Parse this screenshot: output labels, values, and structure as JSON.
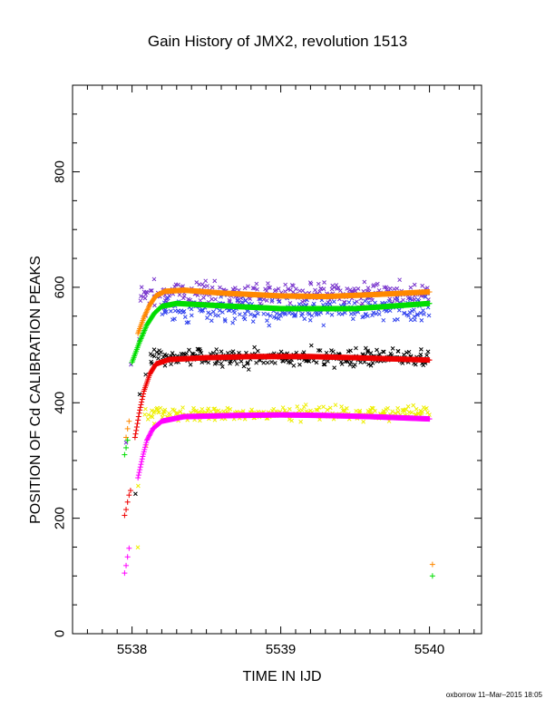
{
  "title": "Gain History of JMX2, revolution 1513",
  "footer": "oxborrow 11–Mar–2015 18:05",
  "chart_data": {
    "type": "scatter",
    "title": "Gain History of JMX2, revolution 1513",
    "xlabel": "TIME IN IJD",
    "ylabel": "POSITION OF Cd CALIBRATION PEAKS",
    "xlim": [
      5537.6,
      5540.35
    ],
    "ylim": [
      0,
      950
    ],
    "xticks": [
      5538,
      5539,
      5540
    ],
    "yticks": [
      0,
      200,
      400,
      600,
      800
    ],
    "grid": false,
    "colors": {
      "purple_raw": "#7733cc",
      "blue_raw": "#3344ee",
      "orange_fit": "#ff8800",
      "green_fit": "#00dd00",
      "black_raw": "#000000",
      "red_fit": "#ee0000",
      "yellow_raw": "#eeee00",
      "magenta_fit": "#ff00ff"
    },
    "series": [
      {
        "style": "x",
        "color_key": "purple_raw",
        "level": 590,
        "spread": 18,
        "x_start": 5538.05,
        "ramp": [
          [
            5537.96,
            330
          ],
          [
            5538.0,
            470
          ],
          [
            5538.05,
            510
          ],
          [
            5538.1,
            545
          ],
          [
            5538.15,
            570
          ],
          [
            5538.2,
            585
          ]
        ]
      },
      {
        "style": "x",
        "color_key": "blue_raw",
        "level": 562,
        "spread": 20,
        "x_start": 5538.2,
        "ramp": []
      },
      {
        "style": "x",
        "color_key": "black_raw",
        "level": 478,
        "spread": 14,
        "x_start": 5538.12,
        "ramp": [
          [
            5538.02,
            245
          ],
          [
            5538.06,
            420
          ],
          [
            5538.1,
            455
          ]
        ]
      },
      {
        "style": "x",
        "color_key": "yellow_raw",
        "level": 382,
        "spread": 11,
        "x_start": 5538.08,
        "ramp": [
          [
            5538.03,
            148
          ],
          [
            5538.05,
            260
          ],
          [
            5538.1,
            330
          ],
          [
            5538.15,
            365
          ]
        ]
      },
      {
        "style": "line",
        "color_key": "orange_fit",
        "points": [
          [
            5538.04,
            520
          ],
          [
            5538.08,
            548
          ],
          [
            5538.12,
            570
          ],
          [
            5538.16,
            585
          ],
          [
            5538.22,
            593
          ],
          [
            5538.35,
            595
          ],
          [
            5538.6,
            590
          ],
          [
            5539.0,
            585
          ],
          [
            5539.3,
            584
          ],
          [
            5539.6,
            587
          ],
          [
            5540.0,
            592
          ]
        ],
        "plus_points": [
          [
            5537.96,
            340
          ],
          [
            5537.97,
            355
          ],
          [
            5537.98,
            368
          ],
          [
            5540.02,
            120
          ]
        ]
      },
      {
        "style": "line",
        "color_key": "green_fit",
        "points": [
          [
            5538.0,
            470
          ],
          [
            5538.05,
            505
          ],
          [
            5538.1,
            535
          ],
          [
            5538.15,
            555
          ],
          [
            5538.2,
            567
          ],
          [
            5538.3,
            572
          ],
          [
            5538.6,
            568
          ],
          [
            5539.0,
            563
          ],
          [
            5539.5,
            563
          ],
          [
            5540.0,
            572
          ]
        ],
        "plus_points": [
          [
            5537.95,
            310
          ],
          [
            5537.96,
            322
          ],
          [
            5537.97,
            335
          ],
          [
            5540.02,
            100
          ]
        ]
      },
      {
        "style": "line",
        "color_key": "red_fit",
        "points": [
          [
            5538.02,
            340
          ],
          [
            5538.05,
            385
          ],
          [
            5538.08,
            420
          ],
          [
            5538.12,
            450
          ],
          [
            5538.16,
            467
          ],
          [
            5538.25,
            475
          ],
          [
            5538.5,
            478
          ],
          [
            5538.8,
            480
          ],
          [
            5539.2,
            480
          ],
          [
            5539.5,
            478
          ],
          [
            5540.0,
            474
          ]
        ],
        "plus_points": [
          [
            5537.95,
            205
          ],
          [
            5537.96,
            215
          ],
          [
            5537.97,
            228
          ],
          [
            5537.98,
            240
          ],
          [
            5537.99,
            248
          ]
        ]
      },
      {
        "style": "line",
        "color_key": "magenta_fit",
        "points": [
          [
            5538.04,
            270
          ],
          [
            5538.07,
            305
          ],
          [
            5538.1,
            335
          ],
          [
            5538.14,
            355
          ],
          [
            5538.2,
            368
          ],
          [
            5538.35,
            376
          ],
          [
            5538.7,
            378
          ],
          [
            5539.0,
            379
          ],
          [
            5539.3,
            378
          ],
          [
            5539.6,
            376
          ],
          [
            5540.0,
            372
          ]
        ],
        "plus_points": [
          [
            5537.95,
            105
          ],
          [
            5537.96,
            118
          ],
          [
            5537.97,
            133
          ],
          [
            5537.98,
            148
          ]
        ]
      }
    ]
  }
}
